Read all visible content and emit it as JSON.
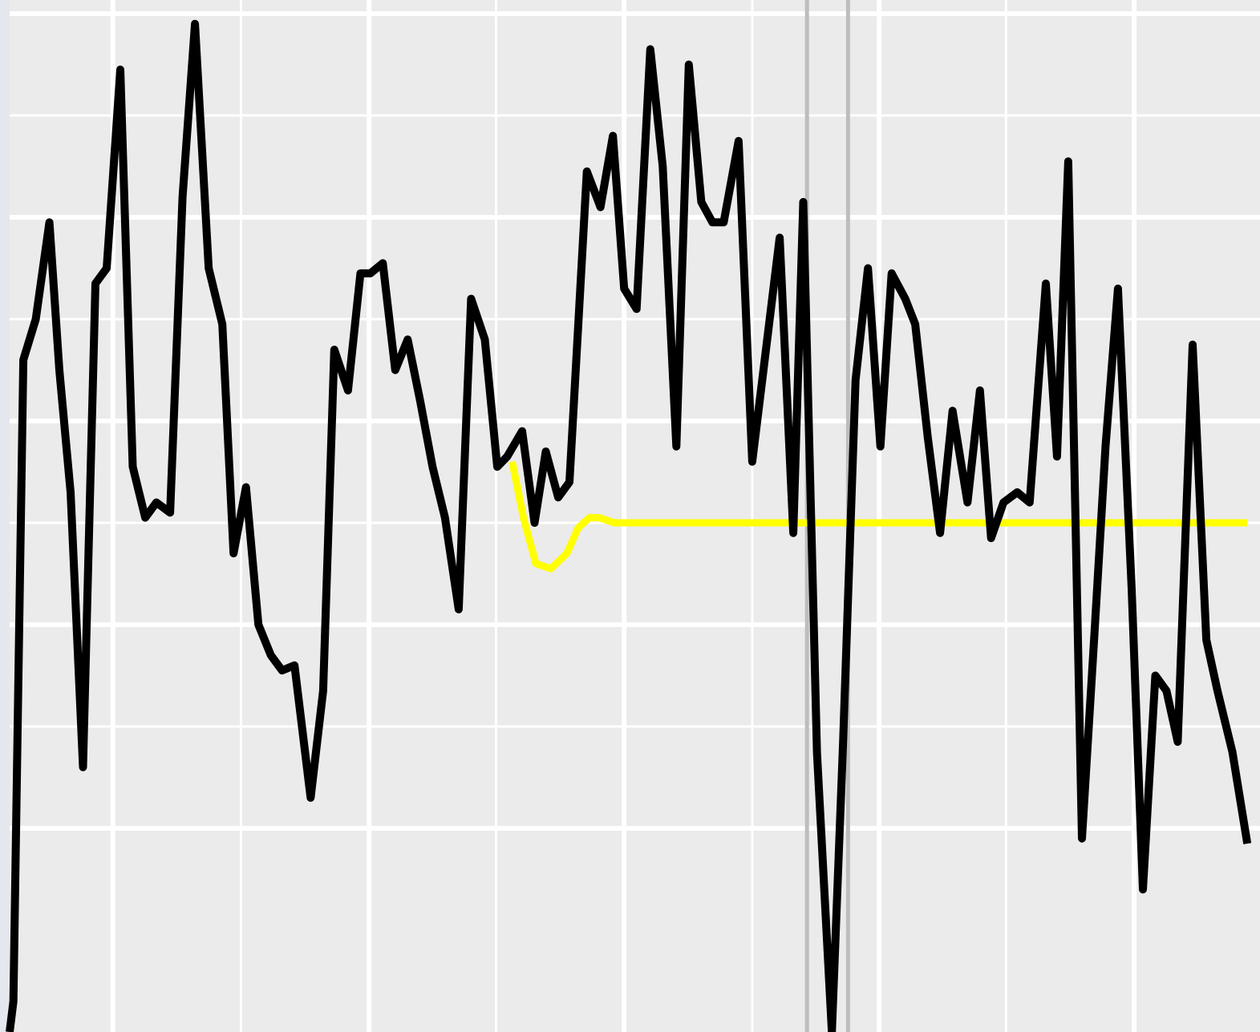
{
  "chart_data": {
    "type": "line",
    "title": "",
    "xlabel": "",
    "ylabel": "",
    "grid": true,
    "xlim": [
      0,
      100
    ],
    "ylim": [
      -10,
      10
    ],
    "x_major_ticks": [
      8.3,
      28.9,
      49.4,
      69.9,
      90.4
    ],
    "x_minor_ticks": [
      18.6,
      39.1,
      59.7,
      80.1
    ],
    "y_major_ticks": [
      10,
      6,
      2,
      -2,
      -6
    ],
    "y_minor_ticks": [
      8,
      4,
      0,
      -4
    ],
    "vertical_markers": [
      64.1,
      67.4
    ],
    "colors": {
      "background": "#ebebeb",
      "grid": "#ffffff",
      "actual": "#000000",
      "forecast": "#ffff00",
      "marker": "#bdbdbd",
      "left_edge": "#e4e7ee"
    },
    "series": [
      {
        "role": "actual",
        "x": [
          0,
          0.3,
          1.1,
          2.1,
          3.2,
          4.0,
          4.9,
          5.9,
          6.9,
          7.8,
          8.9,
          9.9,
          10.9,
          11.8,
          12.9,
          13.9,
          14.9,
          16.0,
          17.1,
          18.0,
          19.0,
          20.0,
          21.0,
          21.9,
          22.9,
          24.2,
          25.2,
          26.1,
          27.2,
          28.2,
          29.0,
          30.0,
          31.0,
          32.0,
          33.0,
          34.0,
          35.0,
          36.1,
          37.1,
          38.2,
          39.2,
          40.0,
          41.2,
          42.2,
          43.1,
          44.1,
          45.0,
          46.4,
          47.5,
          48.5,
          49.4,
          50.4,
          51.5,
          52.5,
          53.6,
          54.6,
          55.6,
          56.5,
          57.4,
          58.6,
          59.7,
          60.8,
          61.9,
          63.0,
          63.8,
          64.9,
          66.1,
          67.0,
          68.0,
          69.0,
          70.0,
          70.9,
          72.0,
          72.8,
          73.8,
          74.8,
          75.8,
          77.0,
          78.0,
          78.9,
          79.9,
          81.0,
          82.0,
          83.3,
          84.2,
          85.1,
          86.2,
          87.2,
          88.1,
          89.1,
          90.2,
          91.1,
          92.1,
          93.0,
          93.9,
          95.1,
          96.2,
          97.1,
          98.3,
          99.5
        ],
        "y": [
          -10,
          -9.4,
          3.2,
          4.0,
          5.9,
          3.0,
          0.6,
          -4.8,
          4.7,
          5.0,
          8.9,
          1.1,
          0.1,
          0.4,
          0.2,
          6.4,
          9.8,
          5.0,
          3.9,
          -0.6,
          0.7,
          -2.0,
          -2.6,
          -2.9,
          -2.8,
          -5.4,
          -3.3,
          3.4,
          2.6,
          4.9,
          4.9,
          5.1,
          3.0,
          3.6,
          2.4,
          1.1,
          0.1,
          -1.7,
          4.4,
          3.6,
          1.1,
          1.3,
          1.8,
          0,
          1.4,
          0.5,
          0.8,
          6.9,
          6.2,
          7.6,
          4.6,
          4.2,
          9.3,
          7.0,
          1.5,
          9.0,
          6.3,
          5.9,
          5.9,
          7.5,
          1.2,
          3.4,
          5.6,
          -0.2,
          6.3,
          -4.5,
          -10,
          -4.3,
          2.8,
          5.0,
          1.5,
          4.9,
          4.4,
          3.9,
          1.7,
          -0.2,
          2.2,
          0.4,
          2.6,
          -0.3,
          0.4,
          0.6,
          0.4,
          4.7,
          1.3,
          7.1,
          -6.2,
          -2.2,
          1.5,
          4.6,
          -1.3,
          -7.2,
          -3.0,
          -3.3,
          -4.3,
          3.5,
          -2.3,
          -3.3,
          -4.5,
          -6.3
        ]
      },
      {
        "role": "forecast",
        "x": [
          40.4,
          41.3,
          42.3,
          43.5,
          44.8,
          45.7,
          46.6,
          47.4,
          48.6,
          50.0,
          99.5
        ],
        "y": [
          1.2,
          0.1,
          -0.8,
          -0.9,
          -0.6,
          -0.1,
          0.1,
          0.1,
          0,
          0,
          0
        ]
      }
    ]
  }
}
